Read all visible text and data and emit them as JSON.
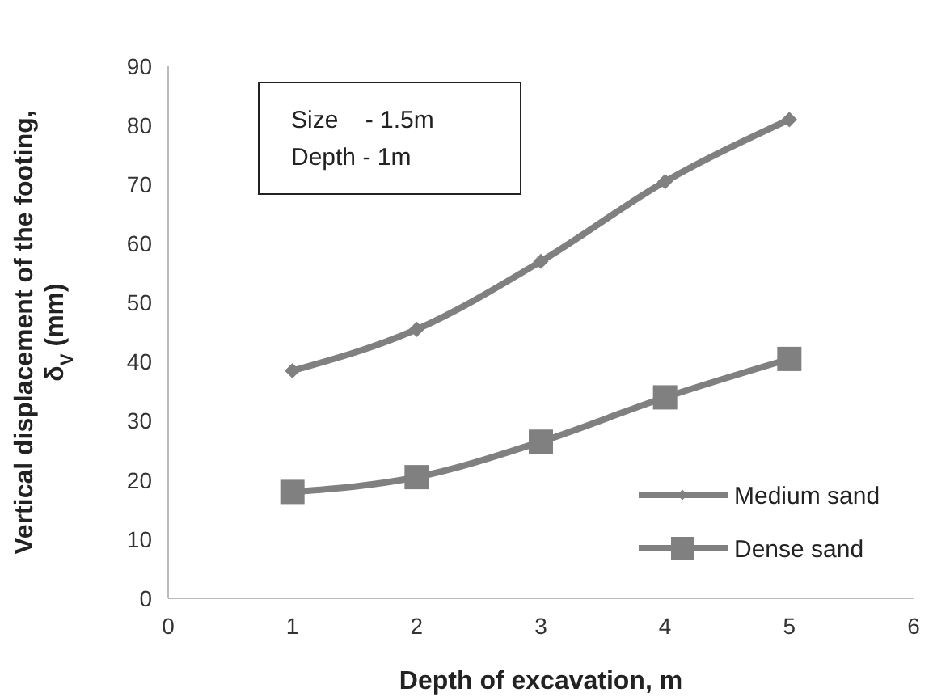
{
  "chart_data": {
    "type": "line",
    "xlabel": "Depth of excavation, m",
    "ylabel": "Vertical displacement of the footing, δ$_{V}$ (mm)",
    "x": [
      1,
      2,
      3,
      4,
      5
    ],
    "series": [
      {
        "name": "Medium sand",
        "color": "#808080",
        "marker": "diamond",
        "values": [
          38.5,
          45.5,
          57,
          70.5,
          81
        ]
      },
      {
        "name": "Dense sand",
        "color": "#808080",
        "marker": "square",
        "values": [
          18,
          20.5,
          26.5,
          34,
          40.5
        ]
      }
    ],
    "xlim": [
      0,
      6
    ],
    "xticks": [
      0,
      1,
      2,
      3,
      4,
      5,
      6
    ],
    "ylim": [
      0,
      90
    ],
    "yticks": [
      0,
      10,
      20,
      30,
      40,
      50,
      60,
      70,
      80,
      90
    ],
    "annotations": [
      "Size    - 1.5m",
      "Depth - 1m"
    ],
    "legend": "bottom right",
    "grid": false,
    "line_style": "solid"
  }
}
